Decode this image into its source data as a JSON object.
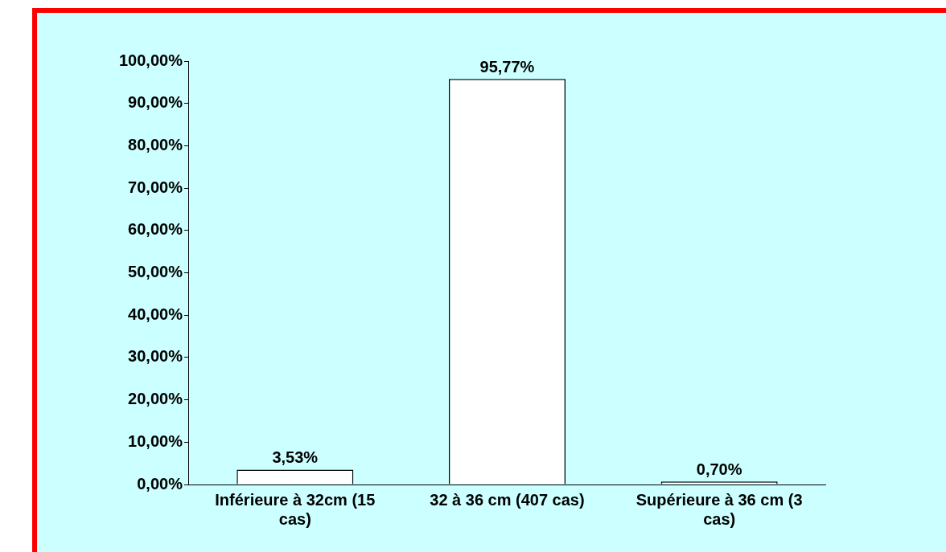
{
  "chart_data": {
    "type": "bar",
    "categories": [
      "Inférieure à 32cm (15 cas)",
      "32 à 36 cm (407 cas)",
      "Supérieure à 36 cm (3 cas)"
    ],
    "values": [
      3.53,
      95.77,
      0.7
    ],
    "value_labels": [
      "3,53%",
      "95,77%",
      "0,70%"
    ],
    "color": "#ffffff",
    "ylim": [
      0,
      100
    ],
    "yticks": [
      {
        "value": 0,
        "label": "0,00%"
      },
      {
        "value": 10,
        "label": "10,00%"
      },
      {
        "value": 20,
        "label": "20,00%"
      },
      {
        "value": 30,
        "label": "30,00%"
      },
      {
        "value": 40,
        "label": "40,00%"
      },
      {
        "value": 50,
        "label": "50,00%"
      },
      {
        "value": 60,
        "label": "60,00%"
      },
      {
        "value": 70,
        "label": "70,00%"
      },
      {
        "value": 80,
        "label": "80,00%"
      },
      {
        "value": 90,
        "label": "90,00%"
      },
      {
        "value": 100,
        "label": "100,00%"
      }
    ],
    "grid": false,
    "legend": false
  }
}
